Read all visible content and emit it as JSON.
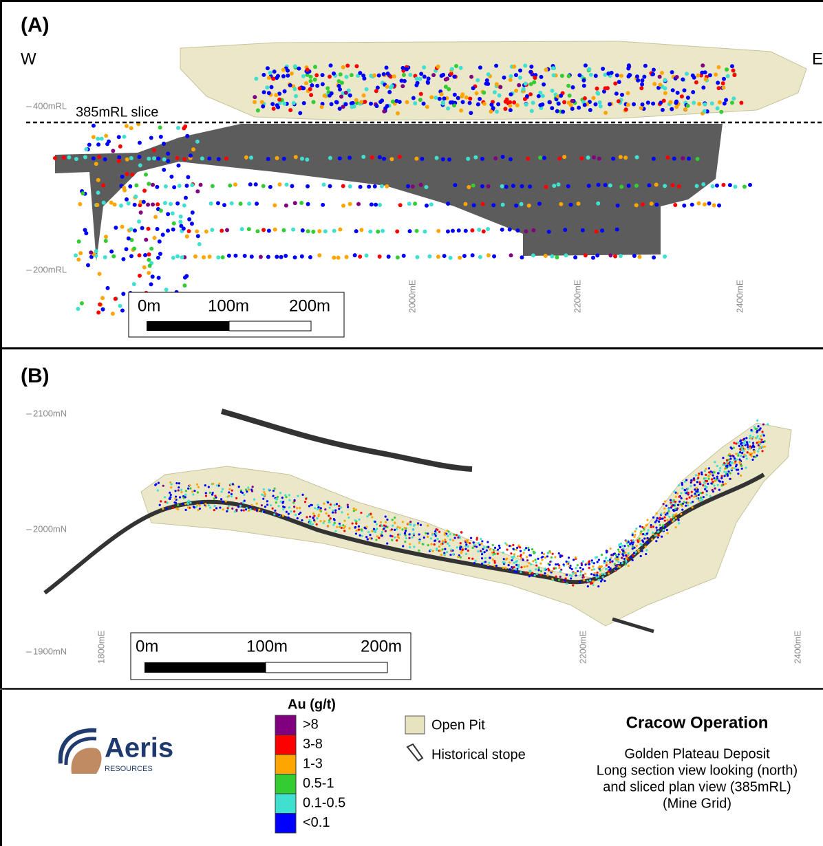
{
  "panel_a": {
    "label": "(A)",
    "west": "W",
    "east": "E",
    "rl_labels": [
      "400mRL",
      "200mRL"
    ],
    "slice_label": "385mRL slice",
    "easting_labels": [
      "2000mE",
      "2200mE",
      "2400mE"
    ],
    "scale_labels": [
      "0m",
      "100m",
      "200m"
    ]
  },
  "panel_b": {
    "label": "(B)",
    "northing_labels": [
      "2100mN",
      "2000mN",
      "1900mN"
    ],
    "easting_labels": [
      "1800mE",
      "2200mE",
      "2400mE"
    ],
    "scale_labels": [
      "0m",
      "100m",
      "200m"
    ]
  },
  "legend": {
    "title": "Au (g/t)",
    "items": [
      {
        "label": ">8",
        "color": "#800080"
      },
      {
        "label": "3-8",
        "color": "#ff0000"
      },
      {
        "label": "1-3",
        "color": "#ffa500"
      },
      {
        "label": "0.5-1",
        "color": "#33cc33"
      },
      {
        "label": "0.1-0.5",
        "color": "#40e0d0"
      },
      {
        "label": "<0.1",
        "color": "#0000ff"
      }
    ],
    "open_pit": "Open Pit",
    "historical_stope": "Historical stope"
  },
  "logo": {
    "name": "Aeris",
    "sub": "RESOURCES"
  },
  "info": {
    "title": "Cracow Operation",
    "lines": [
      "Golden Plateau Deposit",
      "Long section view looking (north)",
      "and sliced plan view (385mRL)",
      "(Mine Grid)"
    ]
  }
}
